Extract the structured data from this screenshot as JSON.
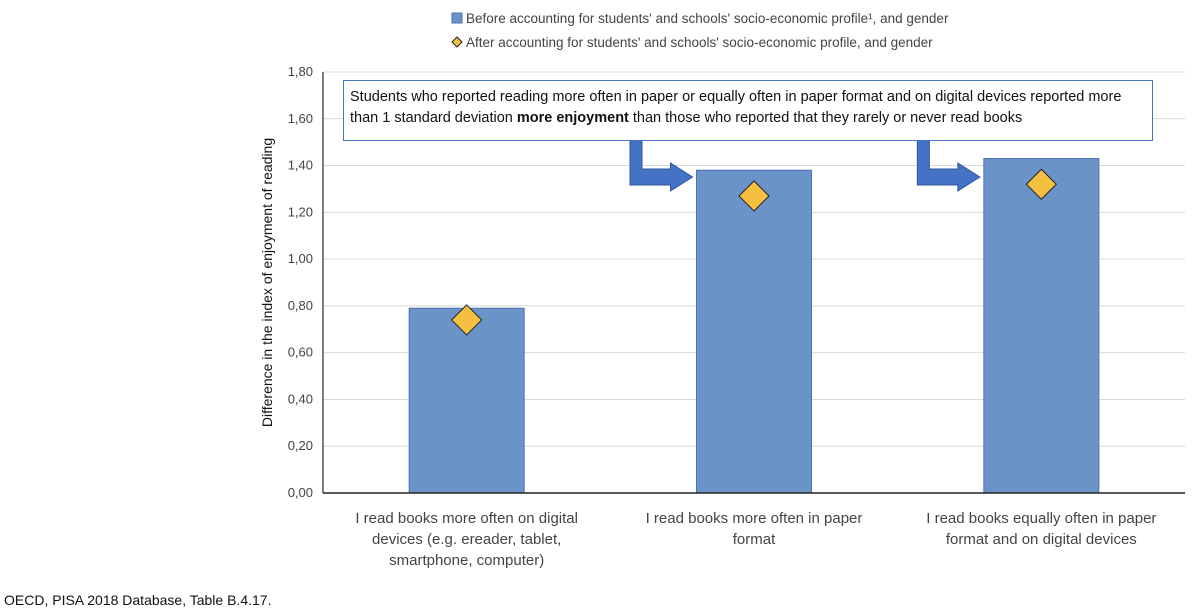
{
  "chart_data": {
    "type": "bar",
    "title": "",
    "xlabel": "",
    "ylabel": "Difference in the index of enjoyment of reading",
    "ylim": [
      0,
      1.8
    ],
    "yticks": [
      "0,00",
      "0,20",
      "0,40",
      "0,60",
      "0,80",
      "1,00",
      "1,20",
      "1,40",
      "1,60",
      "1,80"
    ],
    "grid": true,
    "legend_position": "top",
    "categories": [
      [
        "I read books more often on digital",
        "devices (e.g. ereader, tablet,",
        "smartphone, computer)"
      ],
      [
        "I read books more often in paper",
        "format"
      ],
      [
        "I read books equally often in paper",
        "format and on digital devices"
      ]
    ],
    "series": [
      {
        "name": "Before accounting for students' and schools' socio-economic profile¹, and gender",
        "type": "bar",
        "color": "#6a93c8",
        "values": [
          0.79,
          1.38,
          1.43
        ]
      },
      {
        "name": "After accounting for students' and schools' socio-economic profile, and gender",
        "type": "diamond",
        "color": "#f5bf42",
        "values": [
          0.74,
          1.27,
          1.32
        ]
      }
    ],
    "annotation": {
      "before_bold": "Students who reported reading more often in paper or equally often in paper format and on digital devices reported more than 1 standard deviation ",
      "bold": "more enjoyment",
      "after_bold": " than those who reported that they rarely or never read books"
    }
  },
  "source": "OECD, PISA 2018 Database, Table B.4.17."
}
